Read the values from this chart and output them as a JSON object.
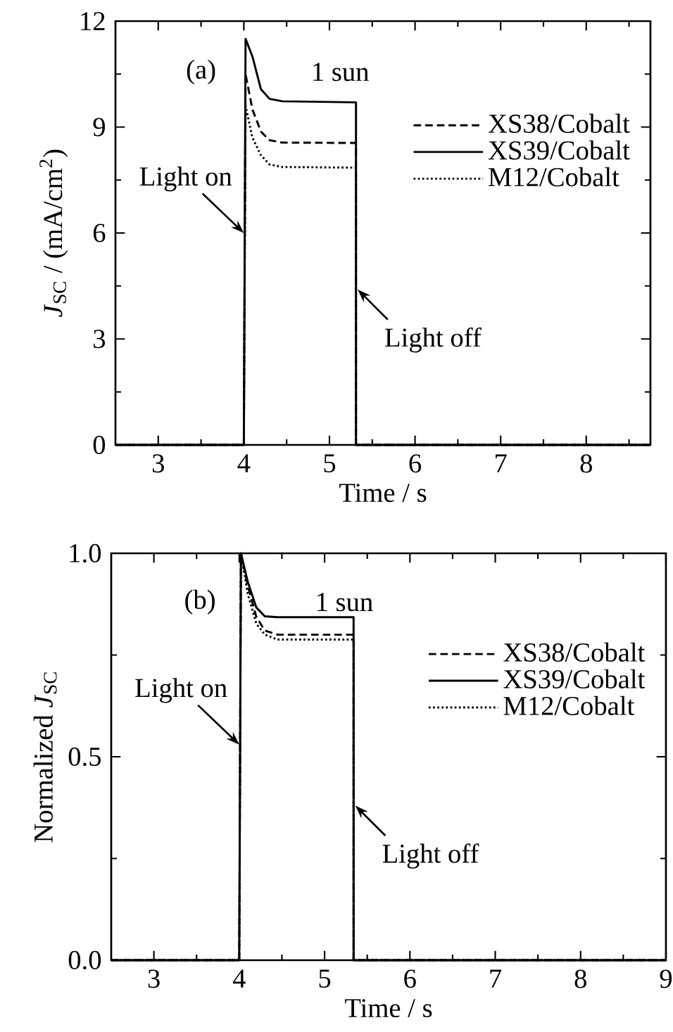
{
  "chart_data": [
    {
      "type": "line",
      "xlabel": "Time / s",
      "ylabel": "*J*$_{SC}$ / (mA/cm$^{2}$)",
      "annotations": [
        "(a)",
        "1 sun",
        {
          "text": "Light on",
          "x": 4.0,
          "y": 6
        },
        {
          "text": "Light off",
          "x": 5.33,
          "y": 4.4
        }
      ],
      "xlim": [
        2.5,
        8.75
      ],
      "ylim": [
        0,
        12
      ],
      "xticks": [
        3,
        {
          "value": 3.5,
          "label": null
        },
        4,
        {
          "value": 4.5,
          "label": null
        },
        5,
        {
          "value": 5.5,
          "label": null
        },
        6,
        {
          "value": 6.5,
          "label": null
        },
        7,
        {
          "value": 7.5,
          "label": null
        },
        8,
        {
          "value": 8.5,
          "label": null
        }
      ],
      "yticks": [
        0,
        {
          "value": 1.5,
          "label": null
        },
        3,
        {
          "value": 4.5,
          "label": null
        },
        6,
        {
          "value": 7.5,
          "label": null
        },
        9,
        {
          "value": 10.5,
          "label": null
        },
        12
      ],
      "legend": "right",
      "series": [
        {
          "name": "XS38/Cobalt",
          "color": "#000000",
          "line_style": "dashed",
          "x": [
            2.5,
            4.0,
            4.02,
            4.1,
            4.2,
            4.3,
            4.45,
            5.31,
            5.31,
            8.75
          ],
          "values": [
            0,
            0,
            10.5,
            9.5,
            8.87,
            8.63,
            8.56,
            8.55,
            0,
            0
          ]
        },
        {
          "name": "XS39/Cobalt",
          "color": "#000000",
          "line_style": "solid",
          "x": [
            2.5,
            4.0,
            4.02,
            4.1,
            4.2,
            4.3,
            4.45,
            5.31,
            5.31,
            8.75
          ],
          "values": [
            0,
            0,
            11.5,
            11.0,
            10.07,
            9.8,
            9.73,
            9.7,
            0,
            0
          ]
        },
        {
          "name": "M12/Cobalt",
          "color": "#000000",
          "line_style": "dotted",
          "x": [
            2.5,
            4.0,
            4.02,
            4.1,
            4.2,
            4.3,
            4.45,
            5.31,
            5.31,
            8.75
          ],
          "values": [
            0,
            0,
            9.6,
            8.7,
            8.2,
            7.94,
            7.87,
            7.85,
            0,
            0
          ]
        }
      ]
    },
    {
      "type": "line",
      "xlabel": "Time / s",
      "ylabel": "Normalized *J*$_{SC}$",
      "annotations": [
        "(b)",
        "1 sun",
        {
          "text": "Light on",
          "x": 4.0,
          "y": 0.53
        },
        {
          "text": "Light off",
          "x": 5.36,
          "y": 0.38
        }
      ],
      "xlim": [
        2.5,
        9
      ],
      "ylim": [
        0,
        1
      ],
      "xticks": [
        3,
        {
          "value": 3.5,
          "label": null
        },
        4,
        {
          "value": 4.5,
          "label": null
        },
        5,
        {
          "value": 5.5,
          "label": null
        },
        6,
        {
          "value": 6.5,
          "label": null
        },
        7,
        {
          "value": 7.5,
          "label": null
        },
        8,
        {
          "value": 8.5,
          "label": null
        },
        9
      ],
      "yticks": [
        {
          "value": 0,
          "label": "0.0"
        },
        {
          "value": 0.25,
          "label": null
        },
        {
          "value": 0.5,
          "label": "0.5"
        },
        {
          "value": 0.75,
          "label": null
        },
        {
          "value": 1,
          "label": "1.0"
        }
      ],
      "legend": "right",
      "series": [
        {
          "name": "XS38/Cobalt",
          "color": "#000000",
          "line_style": "dashed",
          "x": [
            2.5,
            4.0,
            4.02,
            4.1,
            4.2,
            4.3,
            4.45,
            5.34,
            5.34,
            9
          ],
          "values": [
            0,
            0,
            1.0,
            0.92,
            0.844,
            0.81,
            0.8,
            0.8,
            0,
            0
          ]
        },
        {
          "name": "XS39/Cobalt",
          "color": "#000000",
          "line_style": "solid",
          "x": [
            2.5,
            4.0,
            4.02,
            4.1,
            4.2,
            4.3,
            4.45,
            5.34,
            5.34,
            9
          ],
          "values": [
            0,
            0,
            1.0,
            0.93,
            0.867,
            0.845,
            0.843,
            0.843,
            0,
            0
          ]
        },
        {
          "name": "M12/Cobalt",
          "color": "#000000",
          "line_style": "dotted",
          "x": [
            2.5,
            4.0,
            4.02,
            4.1,
            4.2,
            4.3,
            4.45,
            5.34,
            5.34,
            9
          ],
          "values": [
            0,
            0,
            1.0,
            0.9,
            0.827,
            0.8,
            0.788,
            0.788,
            0,
            0
          ]
        }
      ]
    }
  ]
}
